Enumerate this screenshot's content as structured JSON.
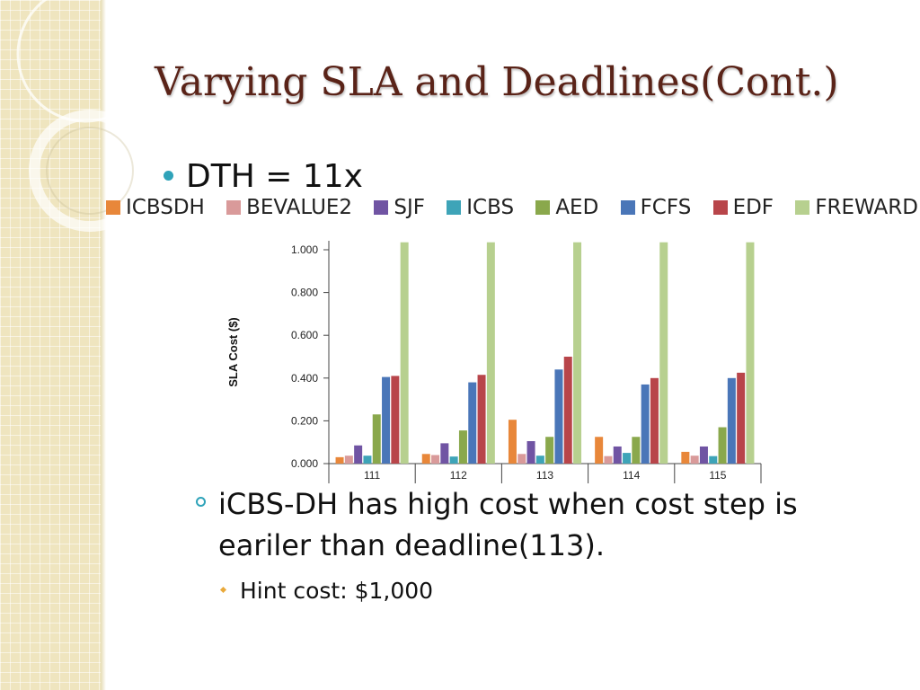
{
  "slide": {
    "title": "Varying SLA and Deadlines(Cont.)",
    "bullet": "DTH = 11x",
    "sub_bullet": "iCBS-DH has high cost when cost step is eariler than deadline(113).",
    "hint": "Hint cost: $1,000"
  },
  "colors": {
    "title": "#5a2318",
    "bullet_accent": "#2fa3b9",
    "hint_bullet": "#e9a93a"
  },
  "chart_data": {
    "type": "bar",
    "title": "",
    "xlabel": "",
    "ylabel": "SLA Cost ($)",
    "categories": [
      "111",
      "112",
      "113",
      "114",
      "115"
    ],
    "ylim": [
      0,
      1.0
    ],
    "yticks": [
      "0.000",
      "0.200",
      "0.400",
      "0.600",
      "0.800",
      "1.000"
    ],
    "grid": false,
    "legend_position": "top",
    "series": [
      {
        "name": "ICBSDH",
        "color": "#e8873a",
        "values": [
          0.03,
          0.045,
          0.205,
          0.125,
          0.055
        ]
      },
      {
        "name": "BEVALUE2",
        "color": "#d99a9a",
        "values": [
          0.037,
          0.04,
          0.045,
          0.035,
          0.037
        ]
      },
      {
        "name": "SJF",
        "color": "#7054a3",
        "values": [
          0.085,
          0.095,
          0.105,
          0.08,
          0.08
        ]
      },
      {
        "name": "ICBS",
        "color": "#3ea4b8",
        "values": [
          0.037,
          0.033,
          0.037,
          0.05,
          0.035
        ]
      },
      {
        "name": "AED",
        "color": "#8aa84c",
        "values": [
          0.23,
          0.155,
          0.125,
          0.125,
          0.17
        ]
      },
      {
        "name": "FCFS",
        "color": "#4a76b8",
        "values": [
          0.405,
          0.38,
          0.44,
          0.37,
          0.4
        ]
      },
      {
        "name": "EDF",
        "color": "#b8454a",
        "values": [
          0.41,
          0.415,
          0.5,
          0.4,
          0.425
        ]
      },
      {
        "name": "FREWARD",
        "color": "#b7d08f",
        "values": [
          1.035,
          1.035,
          1.035,
          1.035,
          1.035
        ]
      }
    ]
  }
}
